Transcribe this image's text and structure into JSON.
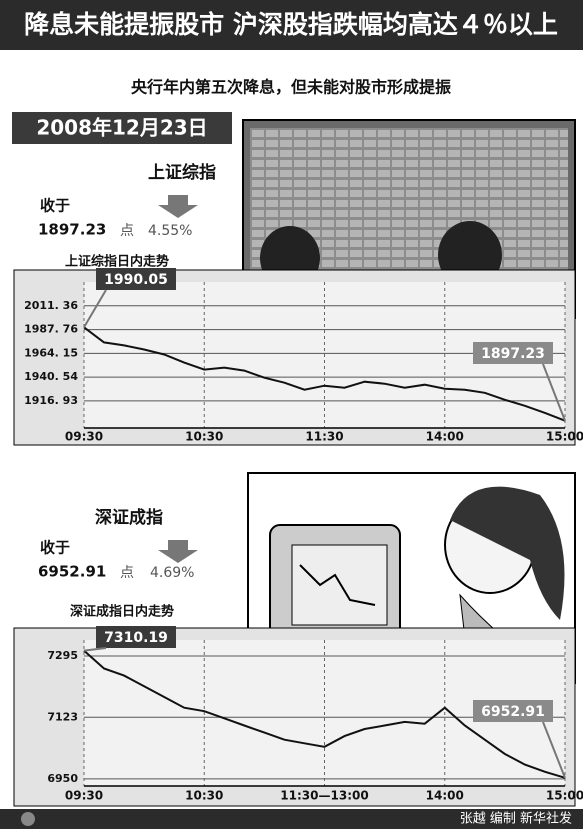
{
  "header": {
    "title": "降息未能提振股市 沪深股指跌幅均高达４％以上",
    "subtitle": "央行年内第五次降息，但未能对股市形成提振",
    "date": "2008年12月23日"
  },
  "indices": [
    {
      "name": "上证综指",
      "close_label": "收于",
      "close": "1897.23",
      "unit": "点",
      "change": "4.55%"
    },
    {
      "name": "深证成指",
      "close_label": "收于",
      "close": "6952.91",
      "unit": "点",
      "change": "4.69%"
    }
  ],
  "chart_data": [
    {
      "type": "line",
      "title": "上证综指日内走势",
      "color": "#111111",
      "categories": [
        "09:30",
        null,
        null,
        null,
        null,
        null,
        "10:30",
        null,
        null,
        null,
        null,
        null,
        "11:30",
        null,
        null,
        null,
        null,
        null,
        "14:00",
        null,
        null,
        null,
        null,
        null,
        "15:00"
      ],
      "values": [
        1990.05,
        1975,
        1972,
        1968,
        1963,
        1955,
        1948,
        1950,
        1947,
        1940,
        1935,
        1928,
        1932,
        1930,
        1936,
        1934,
        1930,
        1933,
        1929,
        1928,
        1925,
        1918,
        1912,
        1905,
        1897.23
      ],
      "ylim": [
        1890,
        2035
      ],
      "yticks": [
        {
          "value": 2011.36,
          "label": "2011. 36"
        },
        {
          "value": 1987.76,
          "label": "1987. 76"
        },
        {
          "value": 1964.15,
          "label": "1964. 15"
        },
        {
          "value": 1940.54,
          "label": "1940. 54"
        },
        {
          "value": 1916.93,
          "label": "1916. 93"
        }
      ],
      "grid": true
    },
    {
      "type": "line",
      "title": "深证成指日内走势",
      "color": "#111111",
      "categories": [
        "09:30",
        null,
        null,
        null,
        null,
        null,
        "10:30",
        null,
        null,
        null,
        null,
        null,
        "11:30—13:00",
        null,
        null,
        null,
        null,
        null,
        "14:00",
        null,
        null,
        null,
        null,
        null,
        "15:00"
      ],
      "values": [
        7310.19,
        7260,
        7240,
        7210,
        7180,
        7150,
        7140,
        7120,
        7100,
        7080,
        7060,
        7050,
        7040,
        7070,
        7090,
        7100,
        7110,
        7105,
        7150,
        7100,
        7060,
        7020,
        6990,
        6970,
        6952.91
      ],
      "ylim": [
        6930,
        7340
      ],
      "yticks": [
        7295,
        7123,
        6950
      ],
      "grid": true
    }
  ],
  "footer": {
    "credit": "张越 编制 新华社发"
  }
}
